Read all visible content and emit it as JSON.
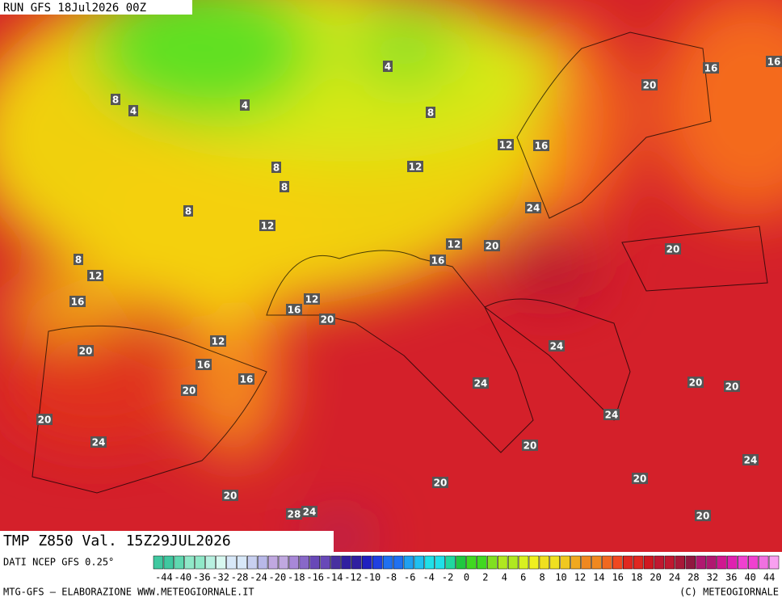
{
  "header": {
    "run": "RUN GFS 18Jul2026 00Z"
  },
  "map": {
    "title": "TMP Z850 Val. 15Z29JUL2026",
    "labels": [
      8,
      4,
      4,
      4,
      8,
      20,
      16,
      16,
      12,
      16,
      8,
      12,
      8,
      8,
      24,
      12,
      12,
      20,
      20,
      8,
      12,
      16,
      16,
      12,
      16,
      20,
      12,
      20,
      24,
      16,
      16,
      20,
      24,
      20,
      20,
      20,
      24,
      24,
      20,
      24,
      20,
      20,
      20,
      28,
      24,
      20
    ]
  },
  "footer": {
    "source": "DATI NCEP GFS 0.25°",
    "scale": [
      -44,
      -40,
      -36,
      -32,
      -28,
      -24,
      -20,
      -18,
      -16,
      -14,
      -12,
      -10,
      -8,
      -6,
      -4,
      -2,
      0,
      2,
      4,
      6,
      8,
      10,
      12,
      14,
      16,
      18,
      20,
      24,
      28,
      32,
      36,
      40,
      44
    ],
    "credit": "MTG-GFS — ELABORAZIONE WWW.METEOGIORNALE.IT",
    "copyright": "(C) METEOGIORNALE"
  }
}
